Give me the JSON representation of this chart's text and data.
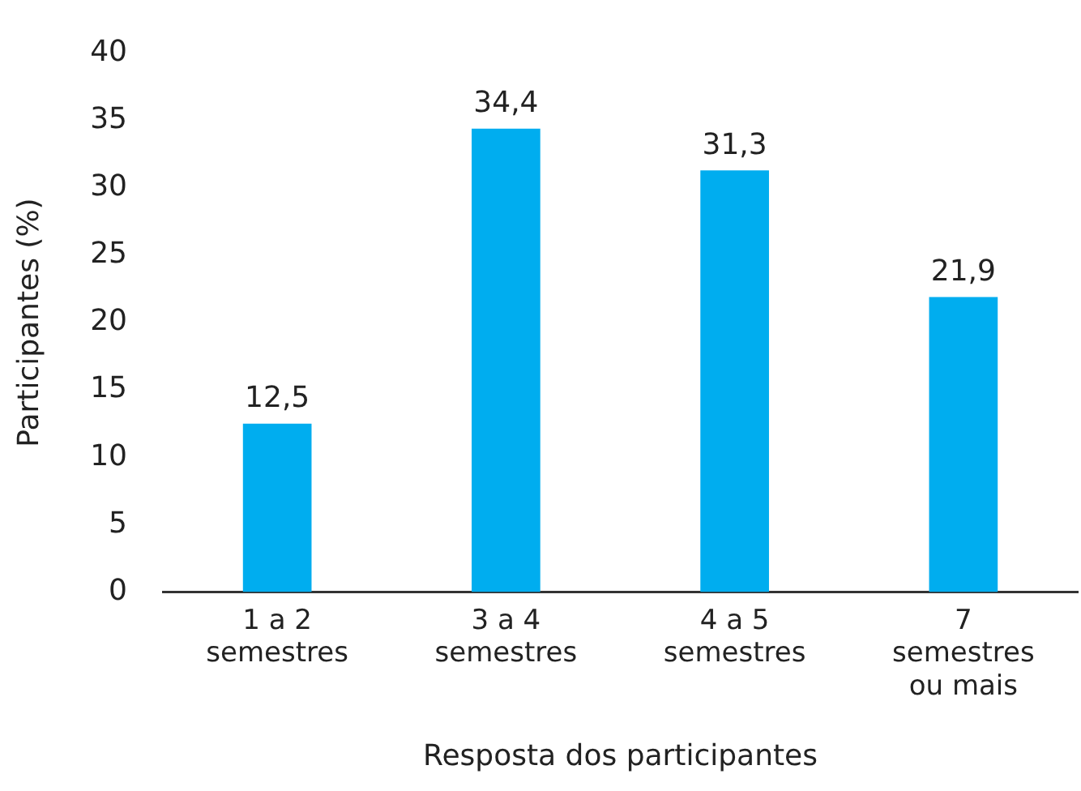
{
  "chart_data": {
    "type": "bar",
    "xlabel": "Resposta dos participantes",
    "ylabel": "Participantes (%)",
    "categories": [
      "1 a 2 semestres",
      "3 a 4 semestres",
      "4 a 5 semestres",
      "7 semestres ou mais"
    ],
    "values": [
      12.5,
      34.4,
      31.3,
      21.9
    ],
    "value_labels": [
      "12,5",
      "34,4",
      "31,3",
      "21,9"
    ],
    "color": "#00adef",
    "ylim": [
      0,
      40
    ],
    "yticks": [
      0,
      5,
      10,
      15,
      20,
      25,
      30,
      35,
      40
    ],
    "grid": false,
    "legend": false
  }
}
